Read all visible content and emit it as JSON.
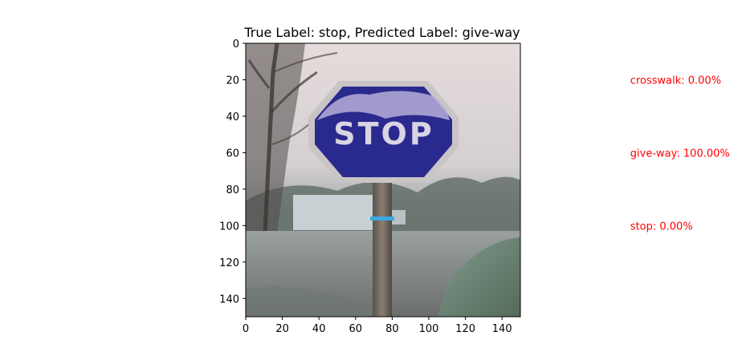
{
  "chart_data": {
    "type": "image",
    "title": "True Label: stop, Predicted Label: give-way",
    "image_size": [
      150,
      150
    ],
    "xlim": [
      0,
      150
    ],
    "ylim": [
      150,
      0
    ],
    "x_ticks": [
      0,
      20,
      40,
      60,
      80,
      100,
      120,
      140
    ],
    "y_ticks": [
      0,
      20,
      40,
      60,
      80,
      100,
      120,
      140
    ],
    "grid": false,
    "annotations": [
      {
        "text": "crosswalk: 0.00%",
        "class": "crosswalk",
        "probability": 0.0
      },
      {
        "text": "give-way: 100.00%",
        "class": "give-way",
        "probability": 100.0
      },
      {
        "text": "stop: 0.00%",
        "class": "stop",
        "probability": 0.0
      }
    ],
    "annotation_color": "#ff0000",
    "image_content": {
      "sign_text": "STOP",
      "sign_color": "#2a2a8e"
    }
  }
}
